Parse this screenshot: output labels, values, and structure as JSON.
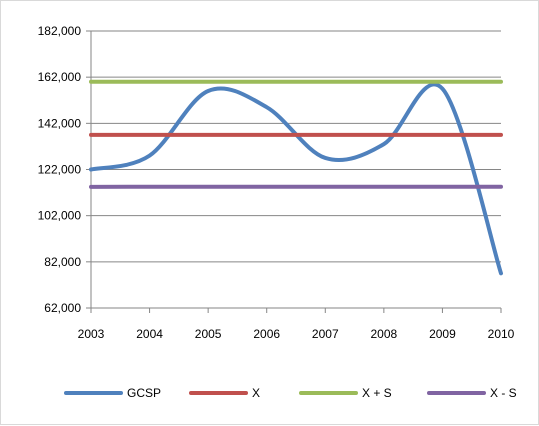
{
  "chart_data": {
    "type": "line",
    "x": [
      "2003",
      "2004",
      "2005",
      "2006",
      "2007",
      "2008",
      "2009",
      "2010"
    ],
    "ylim": [
      62000,
      182000
    ],
    "yticks": [
      62000,
      82000,
      102000,
      122000,
      142000,
      162000,
      182000
    ],
    "ytick_labels": [
      "62,000",
      "82,000",
      "102,000",
      "122,000",
      "142,000",
      "162,000",
      "182,000"
    ],
    "grid": "horizontal",
    "legend_position": "bottom",
    "series": [
      {
        "name": "GCSP",
        "color": "#4f81bd",
        "values": [
          122000,
          128000,
          156000,
          149000,
          127000,
          133000,
          157000,
          77000
        ]
      },
      {
        "name": "X",
        "color": "#c0504d",
        "values": [
          137000,
          137000,
          137000,
          137000,
          137000,
          137000,
          137000,
          137000
        ]
      },
      {
        "name": "X + S",
        "color": "#9bbb59",
        "values": [
          160000,
          160000,
          160000,
          160000,
          160000,
          160000,
          160000,
          160000
        ]
      },
      {
        "name": "X - S",
        "color": "#8064a2",
        "values": [
          114500,
          114500,
          114500,
          114500,
          114500,
          114500,
          114500,
          114500
        ]
      }
    ]
  }
}
